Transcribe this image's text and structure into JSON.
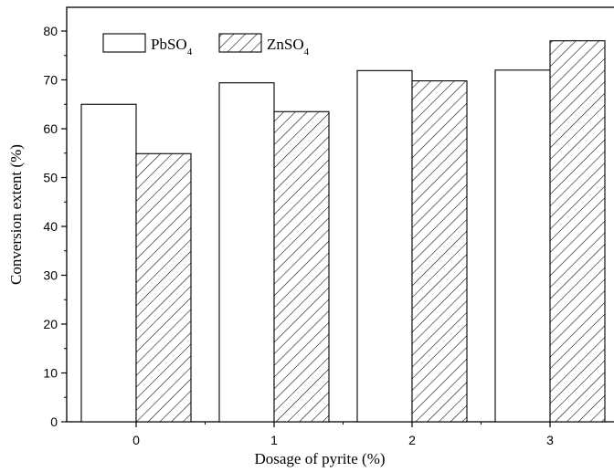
{
  "chart_data": {
    "type": "bar",
    "categories": [
      "0",
      "1",
      "2",
      "3"
    ],
    "series": [
      {
        "name": "PbSO4",
        "values": [
          65.0,
          69.4,
          71.9,
          72.0
        ],
        "fill": "white"
      },
      {
        "name": "ZnSO4",
        "values": [
          54.9,
          63.5,
          69.8,
          78.0
        ],
        "fill": "hatch"
      }
    ],
    "legend": {
      "position": "top-left",
      "entries": [
        {
          "base": "PbSO",
          "sub": "4"
        },
        {
          "base": "ZnSO",
          "sub": "4"
        }
      ]
    },
    "xlabel": "Dosage of pyrite (%)",
    "ylabel": "Conversion extent (%)",
    "ylim": [
      0,
      80
    ],
    "yticks": [
      "0",
      "10",
      "20",
      "30",
      "40",
      "50",
      "60",
      "70",
      "80"
    ],
    "grid": false,
    "colors": {
      "stroke": "#000000",
      "background": "#ffffff"
    }
  }
}
